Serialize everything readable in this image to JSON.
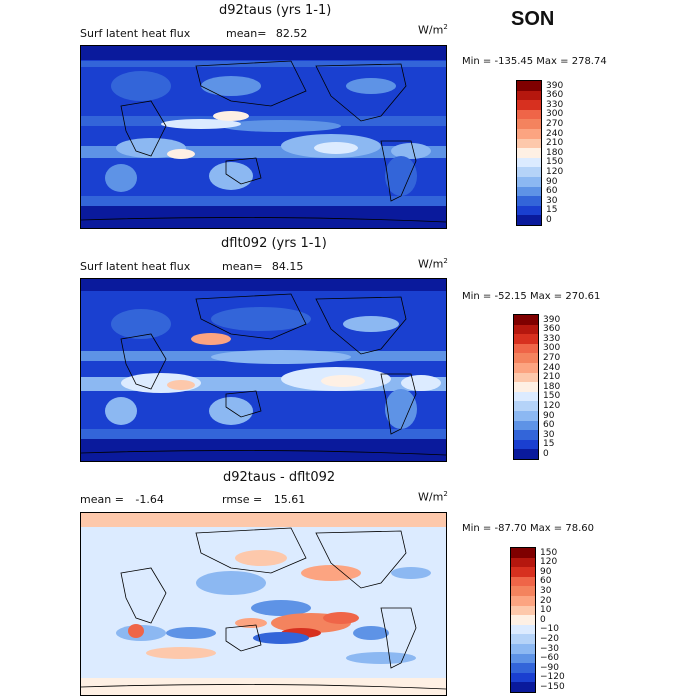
{
  "season": "SON",
  "units": "W/m",
  "units_sup": "2",
  "chart_data": [
    {
      "type": "heatmap",
      "title": "d92taus (yrs 1-1)",
      "variable": "Surf latent heat flux",
      "mean_label": "mean=",
      "mean_value": "82.52",
      "min_label": "Min =",
      "min_value": "-135.45",
      "max_label": "Max =",
      "max_value": "278.74",
      "colorbar": {
        "levels": [
          "390",
          "360",
          "330",
          "300",
          "270",
          "240",
          "210",
          "180",
          "150",
          "120",
          "90",
          "60",
          "30",
          "15",
          "0"
        ],
        "colors": [
          "#7f0000",
          "#b5170e",
          "#d7301f",
          "#ef6548",
          "#f4835e",
          "#fca481",
          "#fdc8ab",
          "#fef0e4",
          "#dcebff",
          "#b5d3f8",
          "#8cb8f2",
          "#5e93e6",
          "#3365d9",
          "#1a3fd0",
          "#0a1a9c"
        ]
      }
    },
    {
      "type": "heatmap",
      "title": "dflt092 (yrs 1-1)",
      "variable": "Surf latent heat flux",
      "mean_label": "mean=",
      "mean_value": "84.15",
      "min_label": "Min =",
      "min_value": "-52.15",
      "max_label": "Max =",
      "max_value": "270.61",
      "colorbar": {
        "levels": [
          "390",
          "360",
          "330",
          "300",
          "270",
          "240",
          "210",
          "180",
          "150",
          "120",
          "90",
          "60",
          "30",
          "15",
          "0"
        ],
        "colors": [
          "#7f0000",
          "#b5170e",
          "#d7301f",
          "#ef6548",
          "#f4835e",
          "#fca481",
          "#fdc8ab",
          "#fef0e4",
          "#dcebff",
          "#b5d3f8",
          "#8cb8f2",
          "#5e93e6",
          "#3365d9",
          "#1a3fd0",
          "#0a1a9c"
        ]
      }
    },
    {
      "type": "heatmap",
      "title": "d92taus - dflt092",
      "mean_label": "mean =",
      "mean_value": "-1.64",
      "rmse_label": "rmse =",
      "rmse_value": "15.61",
      "min_label": "Min =",
      "min_value": "-87.70",
      "max_label": "Max =",
      "max_value": "78.60",
      "colorbar": {
        "levels": [
          "150",
          "120",
          "90",
          "60",
          "30",
          "20",
          "10",
          "0",
          "−10",
          "−20",
          "−30",
          "−60",
          "−90",
          "−120",
          "−150"
        ],
        "colors": [
          "#7f0000",
          "#b5170e",
          "#d7301f",
          "#ef6548",
          "#f4835e",
          "#fca481",
          "#fdc8ab",
          "#fef0e4",
          "#dcebff",
          "#b5d3f8",
          "#8cb8f2",
          "#5e93e6",
          "#3365d9",
          "#1a3fd0",
          "#0a1a9c"
        ]
      }
    }
  ]
}
